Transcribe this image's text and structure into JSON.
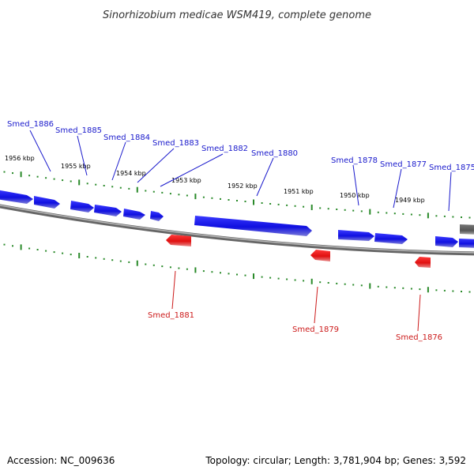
{
  "title": "Sinorhizobium medicae WSM419, complete genome",
  "footer": {
    "accession": "Accession: NC_009636",
    "topology": "Topology: circular; Length: 3,781,904 bp; Genes: 3,592"
  },
  "colors": {
    "forward_strand": "#1a1aee",
    "reverse_strand": "#ee1a1a",
    "ticks": "#2a8a2a",
    "backbone": "#888888",
    "forward_label": "#1a1acc",
    "reverse_label": "#cc1a1a"
  },
  "kbp_labels": [
    {
      "text": "1956 kbp",
      "x": 1956
    },
    {
      "text": "1955 kbp",
      "x": 1955
    },
    {
      "text": "1954 kbp",
      "x": 1954
    },
    {
      "text": "1953 kbp",
      "x": 1953
    },
    {
      "text": "1952 kbp",
      "x": 1952
    },
    {
      "text": "1951 kbp",
      "x": 1951
    },
    {
      "text": "1950 kbp",
      "x": 1950
    },
    {
      "text": "1949 kbp",
      "x": 1949
    }
  ],
  "genes_forward": [
    {
      "name": "Smed_1886"
    },
    {
      "name": "Smed_1885"
    },
    {
      "name": "Smed_1884"
    },
    {
      "name": "Smed_1883"
    },
    {
      "name": "Smed_1882"
    },
    {
      "name": "Smed_1880"
    },
    {
      "name": "Smed_1878"
    },
    {
      "name": "Smed_1877"
    },
    {
      "name": "Smed_1875"
    }
  ],
  "genes_reverse": [
    {
      "name": "Smed_1881"
    },
    {
      "name": "Smed_1879"
    },
    {
      "name": "Smed_1876"
    }
  ]
}
